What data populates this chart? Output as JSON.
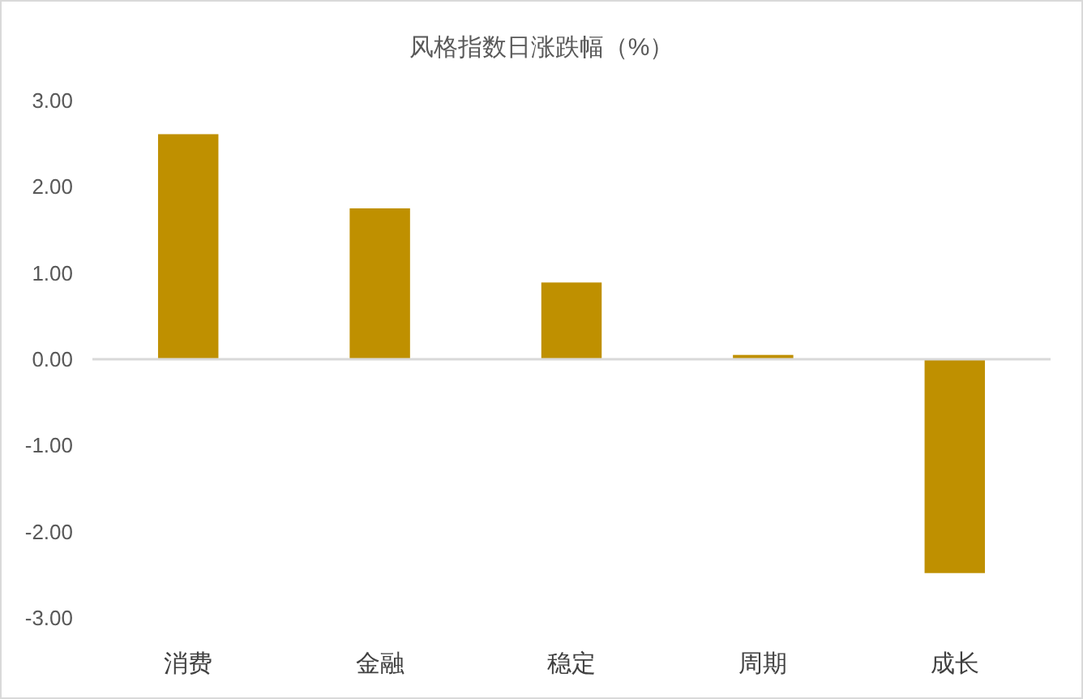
{
  "chart_data": {
    "type": "bar",
    "title": "风格指数日涨跌幅（%）",
    "categories": [
      "消费",
      "金融",
      "稳定",
      "周期",
      "成长"
    ],
    "values": [
      2.61,
      1.75,
      0.89,
      0.05,
      -2.48
    ],
    "color": "#bf9000",
    "ylim": [
      -3,
      3
    ],
    "yticks": [
      {
        "value": 3,
        "label": "3.00"
      },
      {
        "value": 2,
        "label": "2.00"
      },
      {
        "value": 1,
        "label": "1.00"
      },
      {
        "value": 0,
        "label": "0.00"
      },
      {
        "value": -1,
        "label": "-1.00"
      },
      {
        "value": -2,
        "label": "-2.00"
      },
      {
        "value": -3,
        "label": "-3.00"
      }
    ]
  }
}
